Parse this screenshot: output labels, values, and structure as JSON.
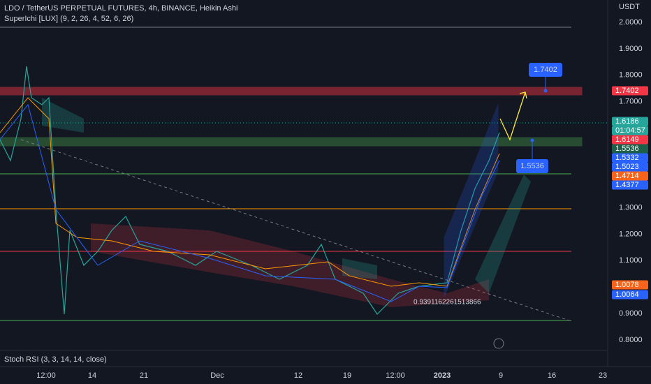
{
  "header": {
    "title": "LDO / TetherUS PERPETUAL FUTURES, 4h, BINANCE, Heikin Ashi",
    "indicator": "SuperIchi [LUX] (9, 2, 26, 4, 52, 6, 26)"
  },
  "price_axis": {
    "currency": "USDT",
    "labels": [
      "2.0000",
      "1.9000",
      "1.8000",
      "1.7000",
      "1.3000",
      "1.2000",
      "1.1000",
      "0.9000",
      "0.8000"
    ]
  },
  "price_tags": [
    {
      "label": "1.7402",
      "color": "#f23645"
    },
    {
      "label": "1.6186",
      "color": "#26a69a"
    },
    {
      "label": "01:04:57",
      "color": "#26a69a"
    },
    {
      "label": "1.6149",
      "color": "#f23645"
    },
    {
      "label": "1.5536",
      "color": "#1e5f4a"
    },
    {
      "label": "1.5332",
      "color": "#2962ff"
    },
    {
      "label": "1.5023",
      "color": "#2962ff"
    },
    {
      "label": "1.4714",
      "color": "#f7631b"
    },
    {
      "label": "1.4377",
      "color": "#2962ff"
    },
    {
      "label": "1.0078",
      "color": "#f7631b"
    },
    {
      "label": "1.0064",
      "color": "#2962ff"
    }
  ],
  "annotations": {
    "target_high": "1.7402",
    "target_low": "1.5536",
    "level": "0.9391162261513866"
  },
  "time_axis": [
    "12:00",
    "14",
    "21",
    "Dec",
    "12",
    "19",
    "12:00",
    "2023",
    "9",
    "16",
    "23"
  ],
  "rsi": "Stoch RSI (3, 3, 14, 14, close)"
}
